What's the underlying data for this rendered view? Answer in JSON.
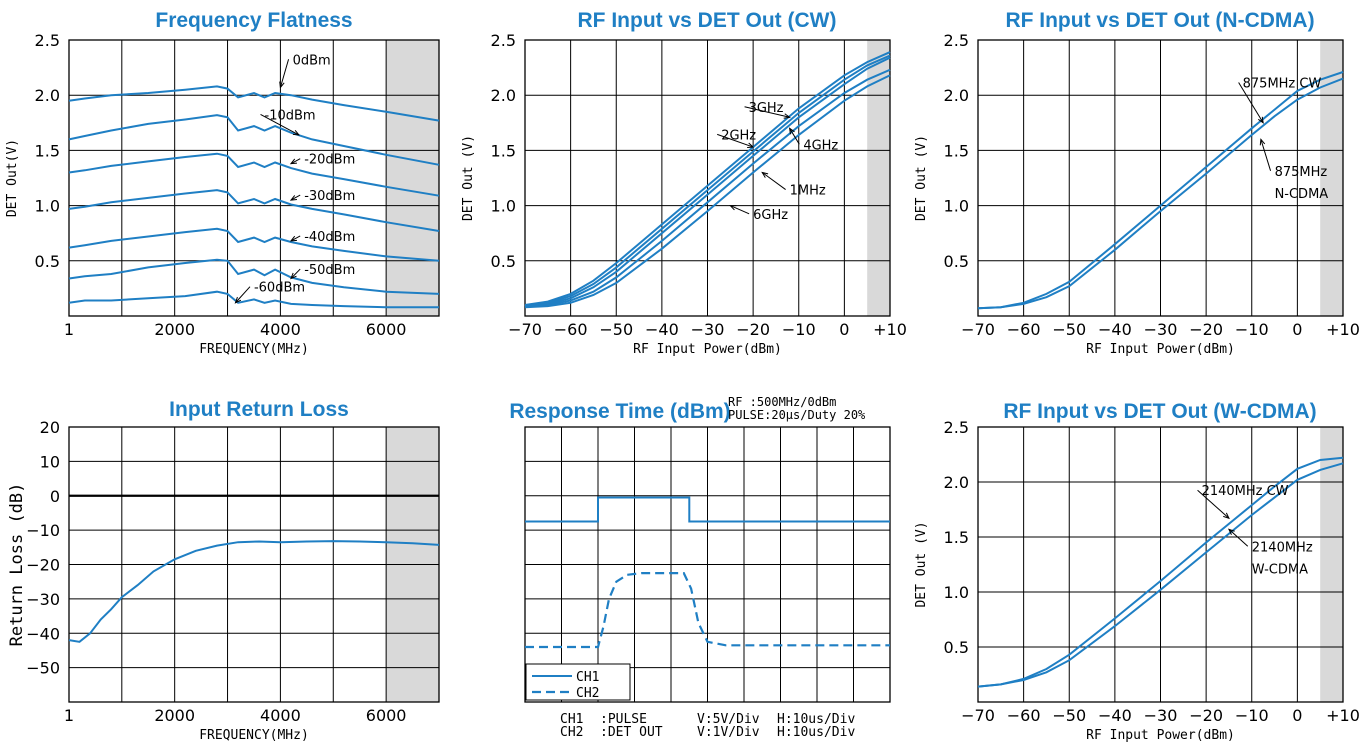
{
  "colors": {
    "series": "#1f7fc4",
    "shade": "#d9d9d9",
    "grid": "#000000"
  },
  "chart_data": [
    {
      "id": "flatness",
      "type": "line",
      "title": "Frequency Flatness",
      "xlabel": "FREQUENCY(MHz)",
      "ylabel": "DET Out(V)",
      "xlim": [
        1,
        7000
      ],
      "ylim": [
        0,
        2.5
      ],
      "xticks": [
        1,
        2000,
        4000,
        6000
      ],
      "xtick_labels": [
        "1",
        "2000",
        "4000",
        "6000"
      ],
      "yticks": [
        0.5,
        1.0,
        1.5,
        2.0,
        2.5
      ],
      "ytick_labels": [
        "0.5",
        "1.0",
        "1.5",
        "2.0",
        "2.5"
      ],
      "grid": true,
      "shaded_x": [
        6000,
        7000
      ],
      "series": [
        {
          "name": "0dBm",
          "x": [
            1,
            300,
            800,
            1500,
            2200,
            2800,
            3000,
            3200,
            3500,
            3700,
            3900,
            4200,
            4600,
            5200,
            6000,
            7000
          ],
          "y": [
            1.95,
            1.97,
            2.0,
            2.02,
            2.05,
            2.08,
            2.06,
            1.98,
            2.02,
            1.98,
            2.02,
            2.0,
            1.96,
            1.91,
            1.85,
            1.77
          ]
        },
        {
          "name": "-10dBm",
          "x": [
            1,
            300,
            800,
            1500,
            2200,
            2800,
            3000,
            3200,
            3500,
            3700,
            3900,
            4200,
            4600,
            5200,
            6000,
            7000
          ],
          "y": [
            1.6,
            1.63,
            1.68,
            1.74,
            1.78,
            1.82,
            1.8,
            1.68,
            1.72,
            1.68,
            1.72,
            1.66,
            1.6,
            1.54,
            1.46,
            1.37
          ]
        },
        {
          "name": "-20dBm",
          "x": [
            1,
            300,
            800,
            1500,
            2200,
            2800,
            3000,
            3200,
            3500,
            3700,
            3900,
            4200,
            4600,
            5200,
            6000,
            7000
          ],
          "y": [
            1.3,
            1.32,
            1.36,
            1.4,
            1.44,
            1.47,
            1.45,
            1.35,
            1.39,
            1.35,
            1.39,
            1.34,
            1.29,
            1.24,
            1.17,
            1.09
          ]
        },
        {
          "name": "-30dBm",
          "x": [
            1,
            300,
            800,
            1500,
            2200,
            2800,
            3000,
            3200,
            3500,
            3700,
            3900,
            4200,
            4600,
            5200,
            6000,
            7000
          ],
          "y": [
            0.97,
            0.99,
            1.03,
            1.07,
            1.11,
            1.14,
            1.12,
            1.02,
            1.06,
            1.02,
            1.06,
            1.01,
            0.97,
            0.92,
            0.85,
            0.77
          ]
        },
        {
          "name": "-40dBm",
          "x": [
            1,
            300,
            800,
            1500,
            2200,
            2800,
            3000,
            3200,
            3500,
            3700,
            3900,
            4200,
            4600,
            5200,
            6000,
            7000
          ],
          "y": [
            0.62,
            0.64,
            0.68,
            0.72,
            0.76,
            0.79,
            0.77,
            0.67,
            0.71,
            0.67,
            0.71,
            0.67,
            0.63,
            0.59,
            0.54,
            0.5
          ]
        },
        {
          "name": "-50dBm",
          "x": [
            1,
            300,
            800,
            1500,
            2200,
            2800,
            3000,
            3200,
            3500,
            3700,
            3900,
            4200,
            4600,
            5200,
            6000,
            7000
          ],
          "y": [
            0.34,
            0.36,
            0.38,
            0.44,
            0.48,
            0.51,
            0.5,
            0.38,
            0.42,
            0.37,
            0.42,
            0.35,
            0.3,
            0.26,
            0.22,
            0.2
          ]
        },
        {
          "name": "-60dBm",
          "x": [
            1,
            300,
            800,
            1500,
            2200,
            2800,
            3000,
            3200,
            3500,
            3700,
            3900,
            4200,
            4600,
            5200,
            6000,
            7000
          ],
          "y": [
            0.12,
            0.14,
            0.14,
            0.16,
            0.18,
            0.22,
            0.2,
            0.12,
            0.15,
            0.12,
            0.14,
            0.11,
            0.1,
            0.09,
            0.08,
            0.08
          ]
        }
      ],
      "annotations": [
        {
          "text": "0dBm",
          "x": 4230,
          "y": 2.28,
          "ax": 4000,
          "ay": 2.07,
          "anchor": "start"
        },
        {
          "text": "-10dBm",
          "x": 3700,
          "y": 1.78,
          "ax": 4350,
          "ay": 1.64,
          "anchor": "start"
        },
        {
          "text": "-20dBm",
          "x": 4450,
          "y": 1.38,
          "ax": 4200,
          "ay": 1.38,
          "anchor": "start"
        },
        {
          "text": "-30dBm",
          "x": 4450,
          "y": 1.05,
          "ax": 4200,
          "ay": 1.05,
          "anchor": "start"
        },
        {
          "text": "-40dBm",
          "x": 4450,
          "y": 0.68,
          "ax": 4200,
          "ay": 0.68,
          "anchor": "start"
        },
        {
          "text": "-50dBm",
          "x": 4450,
          "y": 0.38,
          "ax": 4200,
          "ay": 0.34,
          "anchor": "start"
        },
        {
          "text": "-60dBm",
          "x": 3500,
          "y": 0.22,
          "ax": 3150,
          "ay": 0.12,
          "anchor": "start"
        }
      ]
    },
    {
      "id": "cw",
      "type": "line",
      "title": "RF Input vs DET Out (CW)",
      "xlabel": "RF Input Power(dBm)",
      "ylabel": "DET Out (V)",
      "xlim": [
        -70,
        10
      ],
      "ylim": [
        0,
        2.5
      ],
      "xticks": [
        -70,
        -60,
        -50,
        -40,
        -30,
        -20,
        -10,
        0,
        10
      ],
      "xtick_labels": [
        "−70",
        "−60",
        "−50",
        "−40",
        "−30",
        "−20",
        "−10",
        "0",
        "+10"
      ],
      "yticks": [
        0.5,
        1.0,
        1.5,
        2.0,
        2.5
      ],
      "ytick_labels": [
        "0.5",
        "1.0",
        "1.5",
        "2.0",
        "2.5"
      ],
      "grid": true,
      "shaded_x": [
        5,
        10
      ],
      "series": [
        {
          "name": "3GHz",
          "x": [
            -70,
            -65,
            -60,
            -55,
            -50,
            -40,
            -30,
            -20,
            -10,
            0,
            5,
            10
          ],
          "y": [
            0.1,
            0.13,
            0.2,
            0.32,
            0.48,
            0.83,
            1.18,
            1.53,
            1.88,
            2.18,
            2.3,
            2.39
          ]
        },
        {
          "name": "2GHz",
          "x": [
            -70,
            -65,
            -60,
            -55,
            -50,
            -40,
            -30,
            -20,
            -10,
            0,
            5,
            10
          ],
          "y": [
            0.09,
            0.12,
            0.18,
            0.29,
            0.44,
            0.79,
            1.14,
            1.49,
            1.84,
            2.14,
            2.27,
            2.36
          ]
        },
        {
          "name": "4GHz",
          "x": [
            -70,
            -65,
            -60,
            -55,
            -50,
            -40,
            -30,
            -20,
            -10,
            0,
            5,
            10
          ],
          "y": [
            0.09,
            0.11,
            0.16,
            0.26,
            0.4,
            0.75,
            1.1,
            1.45,
            1.8,
            2.1,
            2.24,
            2.34
          ]
        },
        {
          "name": "1MHz",
          "x": [
            -70,
            -65,
            -60,
            -55,
            -50,
            -40,
            -30,
            -20,
            -10,
            0,
            5,
            10
          ],
          "y": [
            0.09,
            0.1,
            0.14,
            0.22,
            0.35,
            0.68,
            1.03,
            1.38,
            1.72,
            2.02,
            2.14,
            2.23
          ]
        },
        {
          "name": "6GHz",
          "x": [
            -70,
            -65,
            -60,
            -55,
            -50,
            -40,
            -30,
            -20,
            -10,
            0,
            5,
            10
          ],
          "y": [
            0.08,
            0.09,
            0.12,
            0.19,
            0.3,
            0.61,
            0.95,
            1.3,
            1.64,
            1.95,
            2.08,
            2.18
          ]
        }
      ],
      "annotations": [
        {
          "text": "3GHz",
          "x": -21,
          "y": 1.85,
          "ax": -12,
          "ay": 1.8,
          "anchor": "start"
        },
        {
          "text": "2GHz",
          "x": -27,
          "y": 1.6,
          "ax": -20,
          "ay": 1.53,
          "anchor": "start"
        },
        {
          "text": "4GHz",
          "x": -9,
          "y": 1.51,
          "ax": -12,
          "ay": 1.7,
          "anchor": "start"
        },
        {
          "text": "1MHz",
          "x": -12,
          "y": 1.1,
          "ax": -18,
          "ay": 1.3,
          "anchor": "start"
        },
        {
          "text": "6GHz",
          "x": -20,
          "y": 0.88,
          "ax": -25,
          "ay": 1.0,
          "anchor": "start"
        }
      ]
    },
    {
      "id": "ncdma",
      "type": "line",
      "title": "RF Input vs DET Out (N-CDMA)",
      "xlabel": "RF Input Power(dBm)",
      "ylabel": "DET Out (V)",
      "xlim": [
        -70,
        10
      ],
      "ylim": [
        0,
        2.5
      ],
      "xticks": [
        -70,
        -60,
        -50,
        -40,
        -30,
        -20,
        -10,
        0,
        10
      ],
      "xtick_labels": [
        "−70",
        "−60",
        "−50",
        "−40",
        "−30",
        "−20",
        "−10",
        "0",
        "+10"
      ],
      "yticks": [
        0.5,
        1.0,
        1.5,
        2.0,
        2.5
      ],
      "ytick_labels": [
        "0.5",
        "1.0",
        "1.5",
        "2.0",
        "2.5"
      ],
      "grid": true,
      "shaded_x": [
        5,
        10
      ],
      "series": [
        {
          "name": "875MHz CW",
          "x": [
            -70,
            -65,
            -60,
            -55,
            -50,
            -40,
            -30,
            -20,
            -10,
            -5,
            0,
            5,
            10
          ],
          "y": [
            0.07,
            0.08,
            0.12,
            0.2,
            0.31,
            0.65,
            1.0,
            1.35,
            1.7,
            1.87,
            2.04,
            2.14,
            2.21
          ]
        },
        {
          "name": "875MHz N-CDMA",
          "x": [
            -70,
            -65,
            -60,
            -55,
            -50,
            -40,
            -30,
            -20,
            -10,
            -5,
            0,
            5,
            10
          ],
          "y": [
            0.07,
            0.08,
            0.11,
            0.17,
            0.27,
            0.6,
            0.95,
            1.29,
            1.64,
            1.81,
            1.96,
            2.07,
            2.15
          ]
        }
      ],
      "annotations": [
        {
          "text": "875MHz  CW",
          "x": -12,
          "y": 2.07,
          "ax": -7.5,
          "ay": 1.75,
          "anchor": "start"
        },
        {
          "text": "875MHz",
          "x": -5,
          "y": 1.27,
          "ax": -8,
          "ay": 1.6,
          "anchor": "start"
        },
        {
          "text": "N-CDMA",
          "x": -5,
          "y": 1.07,
          "ax": null,
          "ay": null,
          "anchor": "start"
        }
      ]
    },
    {
      "id": "returnloss",
      "type": "line",
      "title": "Input Return Loss",
      "xlabel": "FREQUENCY(MHz)",
      "ylabel": "Return Loss (dB)",
      "xlim": [
        1,
        7000
      ],
      "ylim": [
        -60,
        20
      ],
      "xticks": [
        1,
        2000,
        4000,
        6000
      ],
      "xtick_labels": [
        "1",
        "2000",
        "4000",
        "6000"
      ],
      "yticks": [
        -50,
        -40,
        -30,
        -20,
        -10,
        0,
        10,
        20
      ],
      "ytick_labels": [
        "−50",
        "−40",
        "−30",
        "−20",
        "−10",
        "0",
        "10",
        "20"
      ],
      "grid": true,
      "shaded_x": [
        6000,
        7000
      ],
      "zero_line": true,
      "series": [
        {
          "name": "",
          "x": [
            1,
            200,
            400,
            600,
            800,
            1000,
            1300,
            1600,
            2000,
            2400,
            2800,
            3200,
            3600,
            4000,
            4500,
            5000,
            5500,
            6000,
            6500,
            7000
          ],
          "y": [
            -42,
            -42.5,
            -40,
            -36,
            -33,
            -29.5,
            -26,
            -22,
            -18.5,
            -16,
            -14.5,
            -13.5,
            -13.3,
            -13.5,
            -13.3,
            -13.2,
            -13.3,
            -13.5,
            -13.8,
            -14.3
          ]
        }
      ],
      "annotations": []
    },
    {
      "id": "response",
      "type": "line",
      "title": "Response Time (dBm)",
      "subtitle_lines": [
        "RF    :500MHz/0dBm",
        "PULSE:20μs/Duty 20%"
      ],
      "xlabel": "",
      "ylabel": "",
      "xlim": [
        0,
        10
      ],
      "ylim": [
        0,
        8
      ],
      "xticks": [],
      "xtick_labels": [],
      "yticks": [],
      "ytick_labels": [],
      "grid": true,
      "shaded_x": null,
      "series": [
        {
          "name": "CH1",
          "style": "solid",
          "x": [
            0,
            2,
            2,
            4.5,
            4.5,
            10
          ],
          "y": [
            5.25,
            5.25,
            5.95,
            5.95,
            5.25,
            5.25
          ]
        },
        {
          "name": "CH2",
          "style": "dash",
          "x": [
            0,
            2.0,
            2.15,
            2.3,
            2.5,
            2.8,
            3.2,
            4.35,
            4.55,
            4.75,
            5.0,
            5.5,
            10
          ],
          "y": [
            1.6,
            1.6,
            2.2,
            3.0,
            3.5,
            3.7,
            3.75,
            3.75,
            3.3,
            2.3,
            1.75,
            1.65,
            1.65
          ]
        }
      ],
      "legend": {
        "placement": "bottom-left",
        "entries": [
          "CH1",
          "CH2"
        ]
      },
      "notes": [
        {
          "ch": "CH1",
          "sig": ":PULSE",
          "v": "V:5V/Div",
          "h": "H:10us/Div"
        },
        {
          "ch": "CH2",
          "sig": ":DET OUT",
          "v": "V:1V/Div",
          "h": "H:10us/Div"
        }
      ],
      "annotations": []
    },
    {
      "id": "wcdma",
      "type": "line",
      "title": "RF Input vs DET Out (W-CDMA)",
      "xlabel": "RF Input Power(dBm)",
      "ylabel": "DET Out (V)",
      "xlim": [
        -70,
        10
      ],
      "ylim": [
        0,
        2.5
      ],
      "xticks": [
        -70,
        -60,
        -50,
        -40,
        -30,
        -20,
        -10,
        0,
        10
      ],
      "xtick_labels": [
        "−70",
        "−60",
        "−50",
        "−40",
        "−30",
        "−20",
        "−10",
        "0",
        "+10"
      ],
      "yticks": [
        0.5,
        1.0,
        1.5,
        2.0,
        2.5
      ],
      "ytick_labels": [
        "0.5",
        "1.0",
        "1.5",
        "2.0",
        "2.5"
      ],
      "grid": true,
      "shaded_x": [
        5,
        10
      ],
      "series": [
        {
          "name": "2140MHz CW",
          "x": [
            -70,
            -65,
            -60,
            -55,
            -50,
            -40,
            -30,
            -20,
            -10,
            -5,
            0,
            5,
            10
          ],
          "y": [
            0.14,
            0.16,
            0.21,
            0.3,
            0.43,
            0.76,
            1.1,
            1.45,
            1.79,
            1.96,
            2.12,
            2.2,
            2.22
          ]
        },
        {
          "name": "2140MHz W-CDMA",
          "x": [
            -70,
            -65,
            -60,
            -55,
            -50,
            -40,
            -30,
            -20,
            -10,
            -5,
            0,
            5,
            10
          ],
          "y": [
            0.14,
            0.16,
            0.2,
            0.27,
            0.38,
            0.69,
            1.02,
            1.36,
            1.7,
            1.86,
            2.02,
            2.11,
            2.17
          ]
        }
      ],
      "annotations": [
        {
          "text": "2140MHz  CW",
          "x": -21,
          "y": 1.88,
          "ax": -15,
          "ay": 1.67,
          "anchor": "start"
        },
        {
          "text": "2140MHz",
          "x": -10,
          "y": 1.37,
          "ax": -15,
          "ay": 1.57,
          "anchor": "start"
        },
        {
          "text": "W-CDMA",
          "x": -10,
          "y": 1.17,
          "ax": null,
          "ay": null,
          "anchor": "start"
        }
      ]
    }
  ]
}
